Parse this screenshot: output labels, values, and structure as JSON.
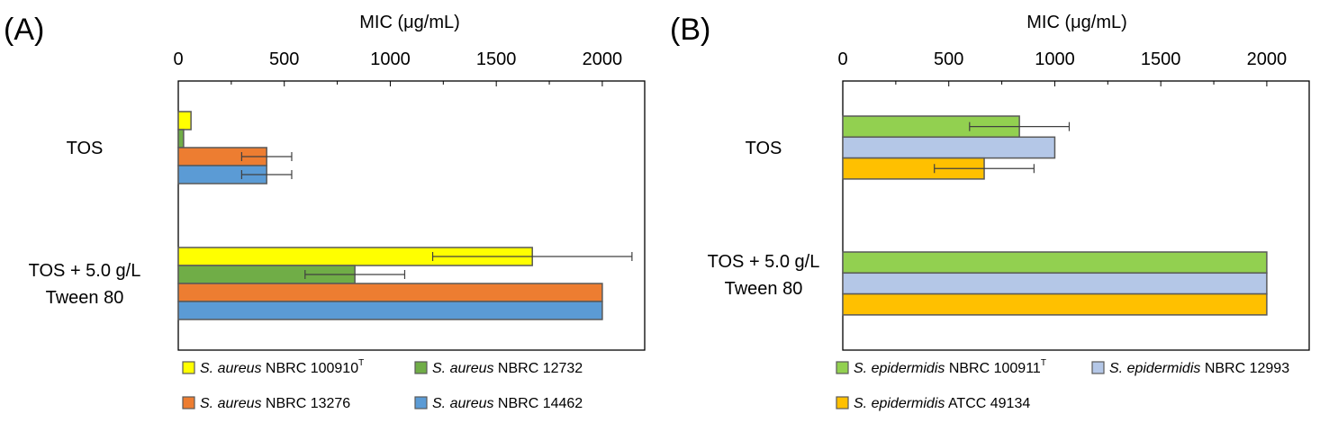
{
  "chart_data": [
    {
      "type": "bar",
      "orientation": "horizontal",
      "panel_label": "(A)",
      "xlabel": "MIC (μg/mL)",
      "xlim": [
        0,
        2200
      ],
      "xticks": [
        0,
        500,
        1000,
        1500,
        2000
      ],
      "x_axis_position": "top",
      "grid": false,
      "legend_placement": "bottom",
      "categories": [
        "TOS",
        "TOS + 5.0 g/L Tween 80"
      ],
      "category_lines": [
        [
          "TOS"
        ],
        [
          "TOS + 5.0 g/L",
          "Tween 80"
        ]
      ],
      "series": [
        {
          "name_italic": "S. aureus",
          "name_rest": " NBRC 100910",
          "name_sup": "T",
          "color": "#ffff00",
          "values": [
            60,
            1670
          ],
          "errors": [
            null,
            470
          ]
        },
        {
          "name_italic": "S. aureus",
          "name_rest": " NBRC 12732",
          "name_sup": "",
          "color": "#70ad47",
          "values": [
            25,
            833
          ],
          "errors": [
            null,
            235
          ]
        },
        {
          "name_italic": "S. aureus",
          "name_rest": " NBRC 13276",
          "name_sup": "",
          "color": "#ed7d31",
          "values": [
            417,
            2000
          ],
          "errors": [
            118,
            null
          ]
        },
        {
          "name_italic": "S. aureus",
          "name_rest": " NBRC 14462",
          "name_sup": "",
          "color": "#5b9bd5",
          "values": [
            417,
            2000
          ],
          "errors": [
            118,
            null
          ]
        }
      ]
    },
    {
      "type": "bar",
      "orientation": "horizontal",
      "panel_label": "(B)",
      "xlabel": "MIC (μg/mL)",
      "xlim": [
        0,
        2200
      ],
      "xticks": [
        0,
        500,
        1000,
        1500,
        2000
      ],
      "x_axis_position": "top",
      "grid": false,
      "legend_placement": "bottom",
      "categories": [
        "TOS",
        "TOS + 5.0 g/L Tween 80"
      ],
      "category_lines": [
        [
          "TOS"
        ],
        [
          "TOS + 5.0 g/L",
          "Tween 80"
        ]
      ],
      "series": [
        {
          "name_italic": "S. epidermidis",
          "name_rest": " NBRC 100911",
          "name_sup": "T",
          "color": "#92d050",
          "values": [
            833,
            2000
          ],
          "errors": [
            235,
            null
          ]
        },
        {
          "name_italic": "S. epidermidis",
          "name_rest": " NBRC 12993",
          "name_sup": "",
          "color": "#b4c7e7",
          "values": [
            1000,
            2000
          ],
          "errors": [
            null,
            null
          ]
        },
        {
          "name_italic": "S. epidermidis",
          "name_rest": " ATCC 49134",
          "name_sup": "",
          "color": "#ffc000",
          "values": [
            667,
            2000
          ],
          "errors": [
            235,
            null
          ]
        }
      ]
    }
  ]
}
